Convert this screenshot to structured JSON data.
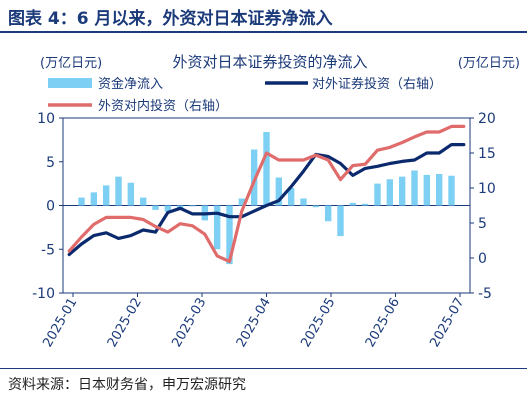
{
  "header": {
    "title": "图表 4：6 月以来，外资对日本证券净流入"
  },
  "footer": {
    "source": "资料来源：日本财务省，申万宏源研究"
  },
  "colors": {
    "bar": "#7dd0f4",
    "outbound": "#0b2a6e",
    "inbound": "#e06b6b",
    "title": "#1b3a7a"
  },
  "chart_data": {
    "type": "bar",
    "title": "外资对日本证券投资的净流入",
    "left_unit": "(万亿日元)",
    "right_unit": "(万亿日元)",
    "left_ylim": [
      -10,
      10
    ],
    "left_ticks": [
      -10,
      -5,
      0,
      5,
      10
    ],
    "right_ylim": [
      -5,
      20
    ],
    "right_ticks": [
      -5,
      0,
      5,
      10,
      15,
      20
    ],
    "x_tick_labels": [
      "2025-01",
      "2025-02",
      "2025-03",
      "2025-04",
      "2025-05",
      "2025-06",
      "2025-07"
    ],
    "n_weeks": 33,
    "legend": [
      {
        "label": "资金净流入",
        "kind": "bar"
      },
      {
        "label": "对外证券投资（右轴）",
        "kind": "line-outbound"
      },
      {
        "label": "外资对内投资（右轴）",
        "kind": "line-inbound"
      }
    ],
    "series": [
      {
        "name": "资金净流入",
        "axis": "left",
        "kind": "bar",
        "values": [
          0,
          0.9,
          1.5,
          2.3,
          3.3,
          2.6,
          0.9,
          -0.5,
          -0.7,
          -0.3,
          -0.1,
          -1.7,
          -5.0,
          -6.7,
          0.8,
          6.4,
          8.4,
          3.2,
          2.0,
          0.8,
          -0.2,
          -1.8,
          -3.5,
          0.3,
          0.2,
          2.5,
          3.0,
          3.3,
          4.0,
          3.5,
          3.6,
          3.4,
          0
        ]
      },
      {
        "name": "对外证券投资（右轴）",
        "axis": "right",
        "kind": "line",
        "values": [
          0.5,
          2.0,
          3.2,
          3.6,
          2.8,
          3.2,
          4.0,
          3.7,
          6.5,
          7.1,
          6.3,
          6.3,
          6.4,
          5.9,
          5.9,
          6.7,
          7.5,
          8.2,
          10.2,
          12.4,
          14.8,
          14.5,
          13.5,
          11.8,
          12.8,
          13.1,
          13.5,
          13.8,
          14.0,
          15.0,
          15.0,
          16.2,
          16.2
        ]
      },
      {
        "name": "外资对内投资（右轴）",
        "axis": "right",
        "kind": "line",
        "values": [
          1.0,
          3.0,
          4.8,
          5.8,
          5.8,
          5.8,
          5.5,
          4.5,
          3.7,
          4.9,
          4.6,
          3.4,
          0.3,
          -0.5,
          6.7,
          11.0,
          15.0,
          14.0,
          14.0,
          14.0,
          14.7,
          14.0,
          11.2,
          13.2,
          13.4,
          15.4,
          15.8,
          16.5,
          17.3,
          18.0,
          18.0,
          18.8,
          18.8
        ]
      }
    ]
  }
}
